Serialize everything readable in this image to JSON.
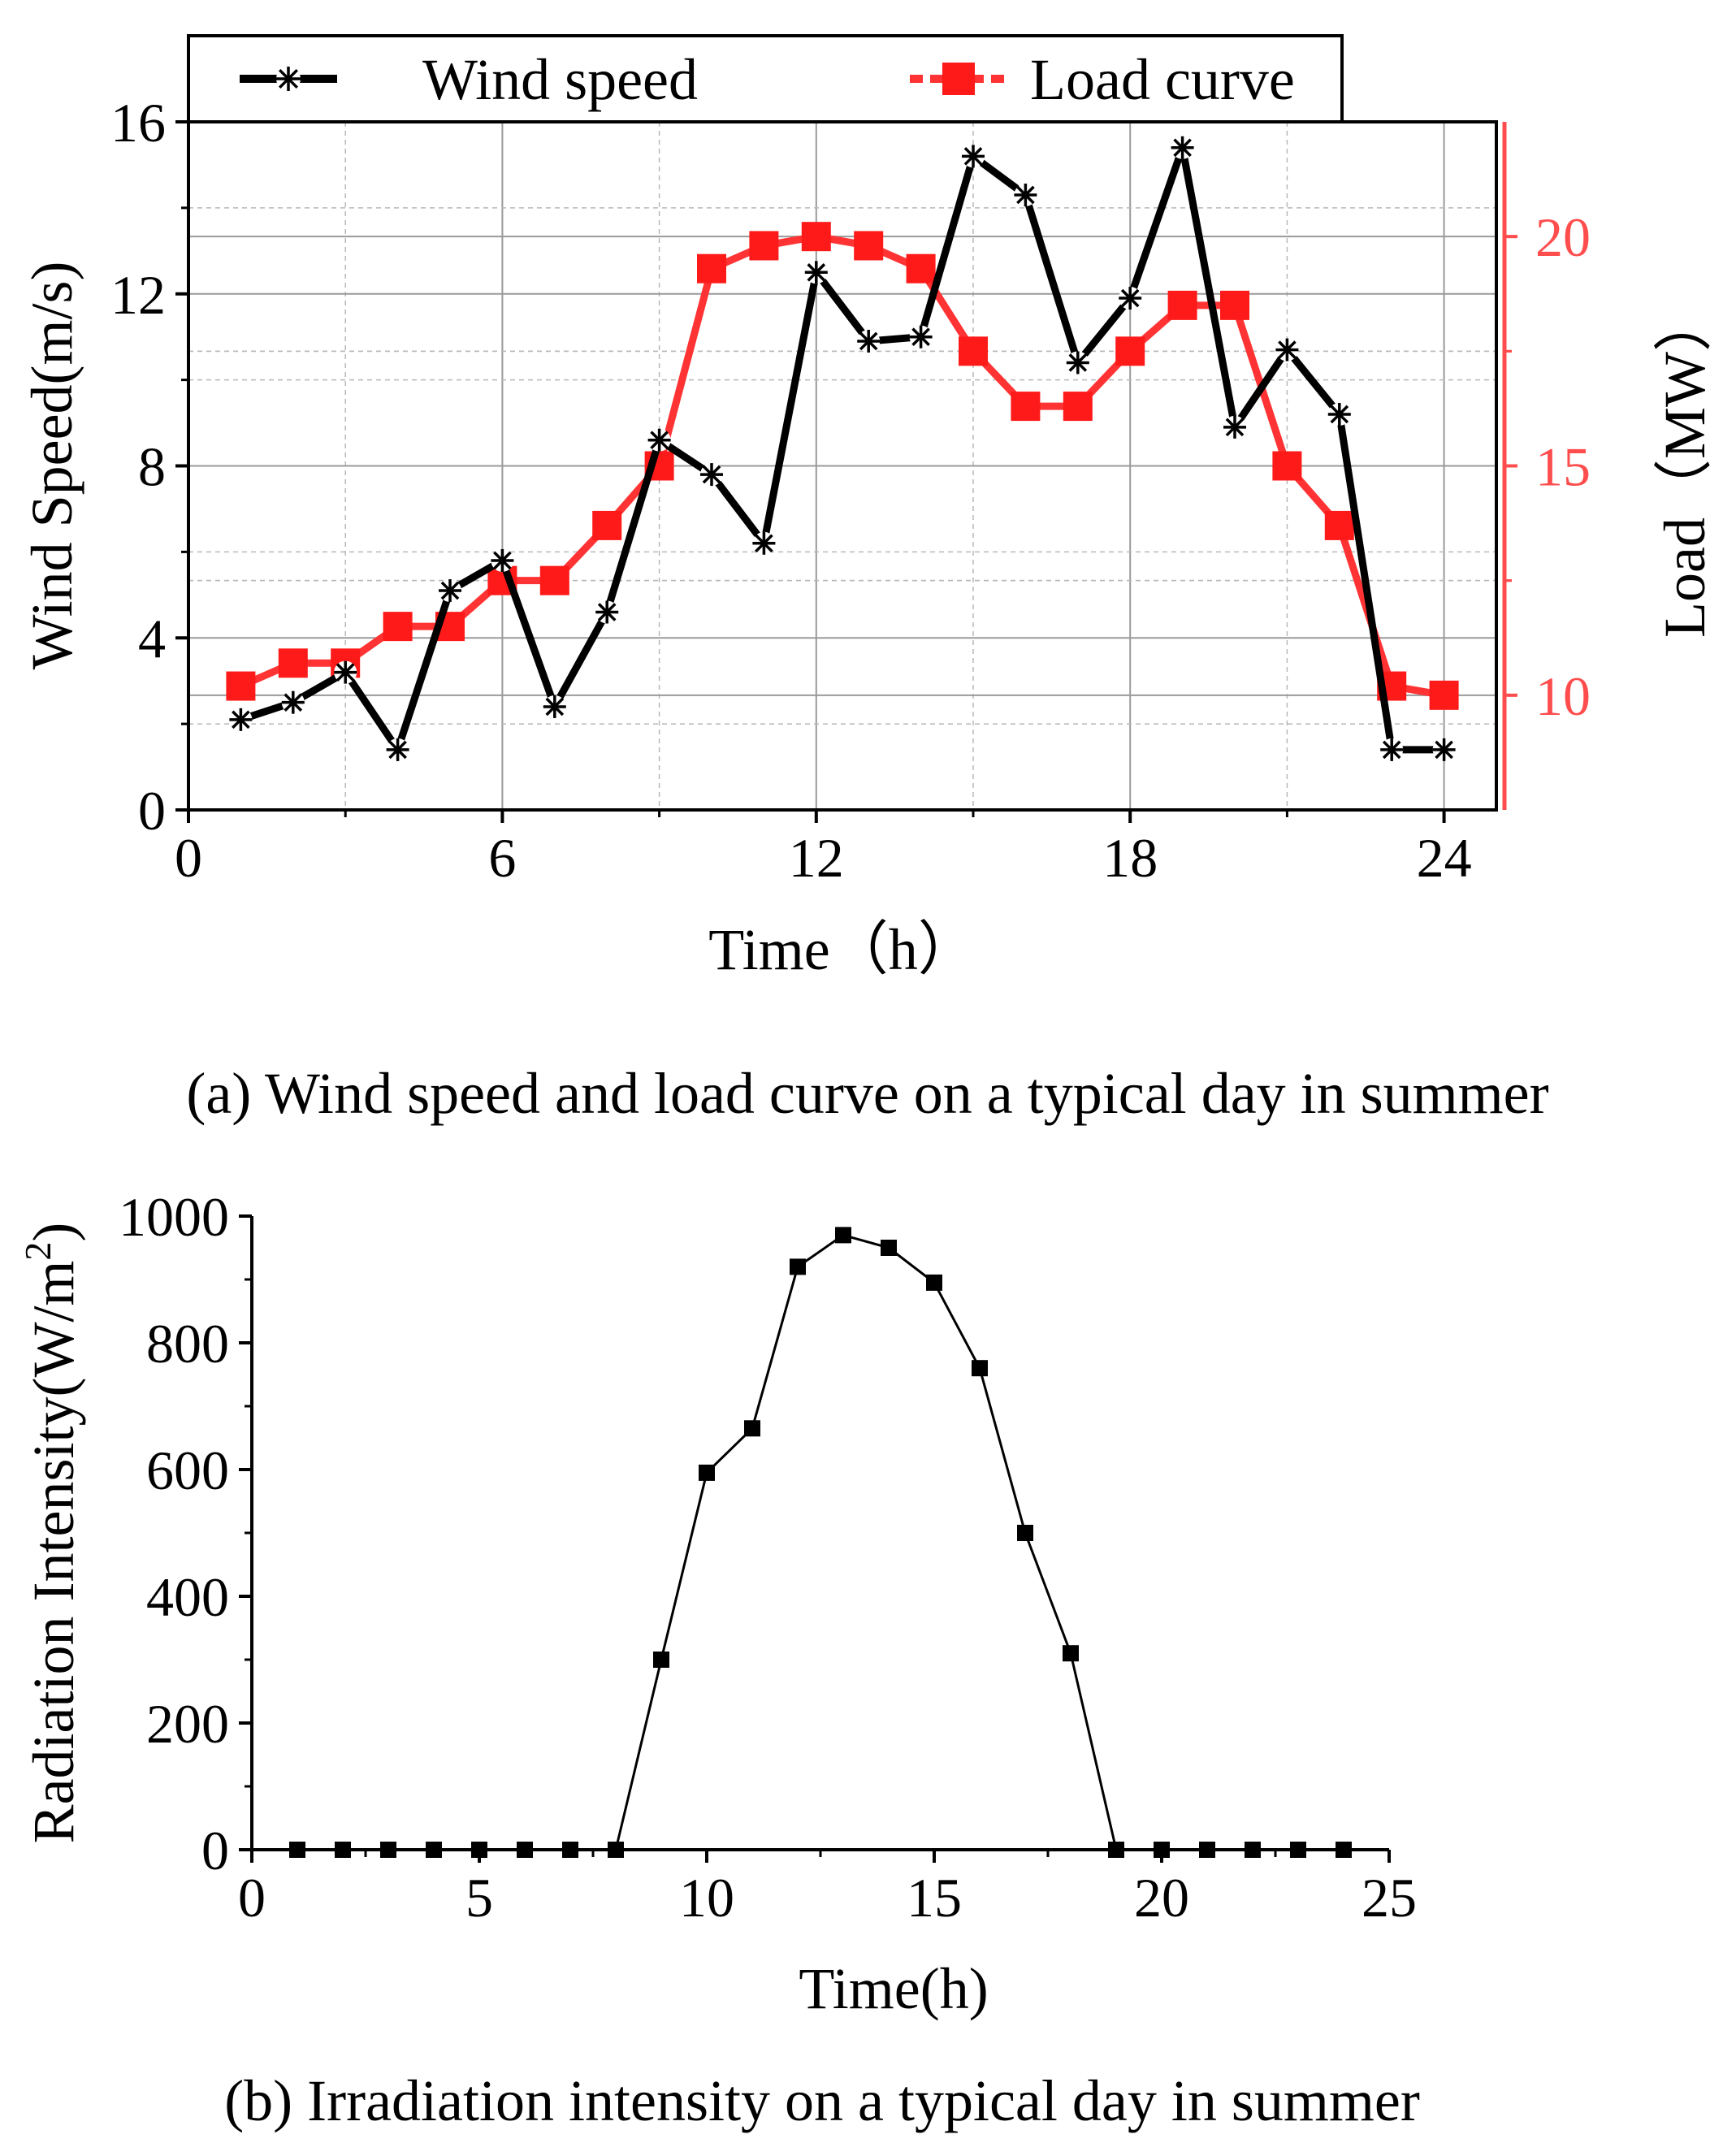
{
  "chart_data": [
    {
      "type": "line",
      "title": "",
      "caption": "(a) Wind speed and load curve on a typical day in summer",
      "xlabel": "Time（h）",
      "ylabel": "Wind Speed(m/s)",
      "ylabel_right": "Load（MW）",
      "xlim": [
        0,
        25
      ],
      "ylim": [
        0,
        16
      ],
      "ylim_right": [
        7.5,
        22.5
      ],
      "x_ticks": [
        "0",
        "6",
        "12",
        "18",
        "24"
      ],
      "y_ticks": [
        "0",
        "4",
        "8",
        "12",
        "16"
      ],
      "y_right_ticks": [
        "10",
        "15",
        "20"
      ],
      "grid": true,
      "legend_position": "top",
      "colors": {
        "wind": "#000000",
        "load": "#ff3333",
        "load_axis": "#ff4d4d"
      },
      "x": [
        1,
        2,
        3,
        4,
        5,
        6,
        7,
        8,
        9,
        10,
        11,
        12,
        13,
        14,
        15,
        16,
        17,
        18,
        19,
        20,
        21,
        22,
        23,
        24
      ],
      "series": [
        {
          "name": "Wind speed",
          "axis": "left",
          "marker": "asterisk",
          "values": [
            2.1,
            2.5,
            3.2,
            1.4,
            5.1,
            5.8,
            2.4,
            4.6,
            8.6,
            7.8,
            6.2,
            12.5,
            10.9,
            11.0,
            15.2,
            14.3,
            10.4,
            11.9,
            15.4,
            8.9,
            10.7,
            9.2,
            1.4,
            1.4
          ]
        },
        {
          "name": "Load curve",
          "axis": "right",
          "marker": "square",
          "values": [
            10.2,
            10.7,
            10.7,
            11.5,
            11.5,
            12.5,
            12.5,
            13.7,
            15.0,
            19.3,
            19.8,
            20.0,
            19.8,
            19.3,
            17.5,
            16.3,
            16.3,
            17.5,
            18.5,
            18.5,
            15.0,
            13.7,
            10.2,
            10.0
          ]
        }
      ]
    },
    {
      "type": "line",
      "title": "",
      "caption": "(b) Irradiation intensity on a typical day in summer",
      "xlabel": "Time(h)",
      "ylabel": "Radiation Intensity(W/m",
      "ylabel_sup": "2",
      "ylabel_close": ")",
      "xlim": [
        0,
        25
      ],
      "ylim": [
        0,
        1000
      ],
      "x_ticks": [
        "0",
        "5",
        "10",
        "15",
        "20",
        "25"
      ],
      "y_ticks": [
        "0",
        "200",
        "400",
        "600",
        "800",
        "1000"
      ],
      "grid": false,
      "colors": {
        "line": "#000000"
      },
      "x": [
        1,
        2,
        3,
        4,
        5,
        6,
        7,
        8,
        9,
        10,
        11,
        12,
        13,
        14,
        15,
        16,
        17,
        18,
        19,
        20,
        21,
        22,
        23,
        24
      ],
      "series": [
        {
          "name": "Radiation intensity",
          "marker": "square",
          "values": [
            0,
            0,
            0,
            0,
            0,
            0,
            0,
            0,
            300,
            595,
            665,
            920,
            970,
            950,
            895,
            760,
            500,
            310,
            0,
            0,
            0,
            0,
            0,
            0
          ]
        }
      ]
    }
  ]
}
